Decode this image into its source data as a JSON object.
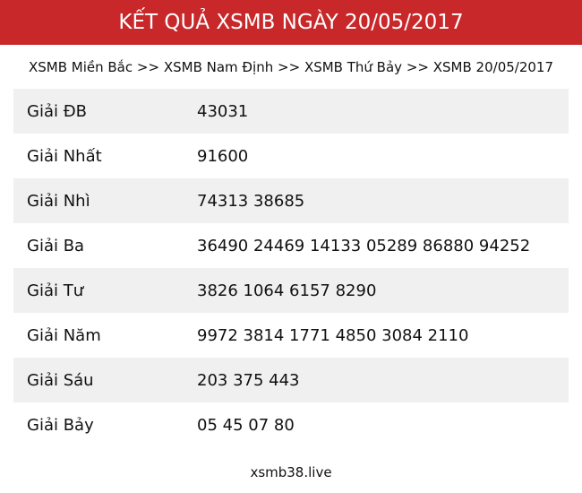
{
  "header": {
    "title": "KẾT QUẢ XSMB NGÀY 20/05/2017"
  },
  "breadcrumb": [
    {
      "label": "XSMB Miền Bắc"
    },
    {
      "label": "XSMB Nam Định"
    },
    {
      "label": "XSMB Thứ Bảy"
    },
    {
      "label": "XSMB 20/05/2017"
    }
  ],
  "separator": ">>",
  "prizes": [
    {
      "label": "Giải ĐB",
      "value": "43031"
    },
    {
      "label": "Giải Nhất",
      "value": "91600"
    },
    {
      "label": "Giải Nhì",
      "value": "74313 38685"
    },
    {
      "label": "Giải Ba",
      "value": "36490 24469 14133 05289 86880 94252"
    },
    {
      "label": "Giải Tư",
      "value": "3826 1064 6157 8290"
    },
    {
      "label": "Giải Năm",
      "value": "9972 3814 1771 4850 3084 2110"
    },
    {
      "label": "Giải Sáu",
      "value": "203 375 443"
    },
    {
      "label": "Giải Bảy",
      "value": "05 45 07 80"
    }
  ],
  "footer": {
    "text": "xsmb38.live"
  },
  "colors": {
    "header_bg": "#c8282a",
    "stripe": "#f0f0f0"
  }
}
